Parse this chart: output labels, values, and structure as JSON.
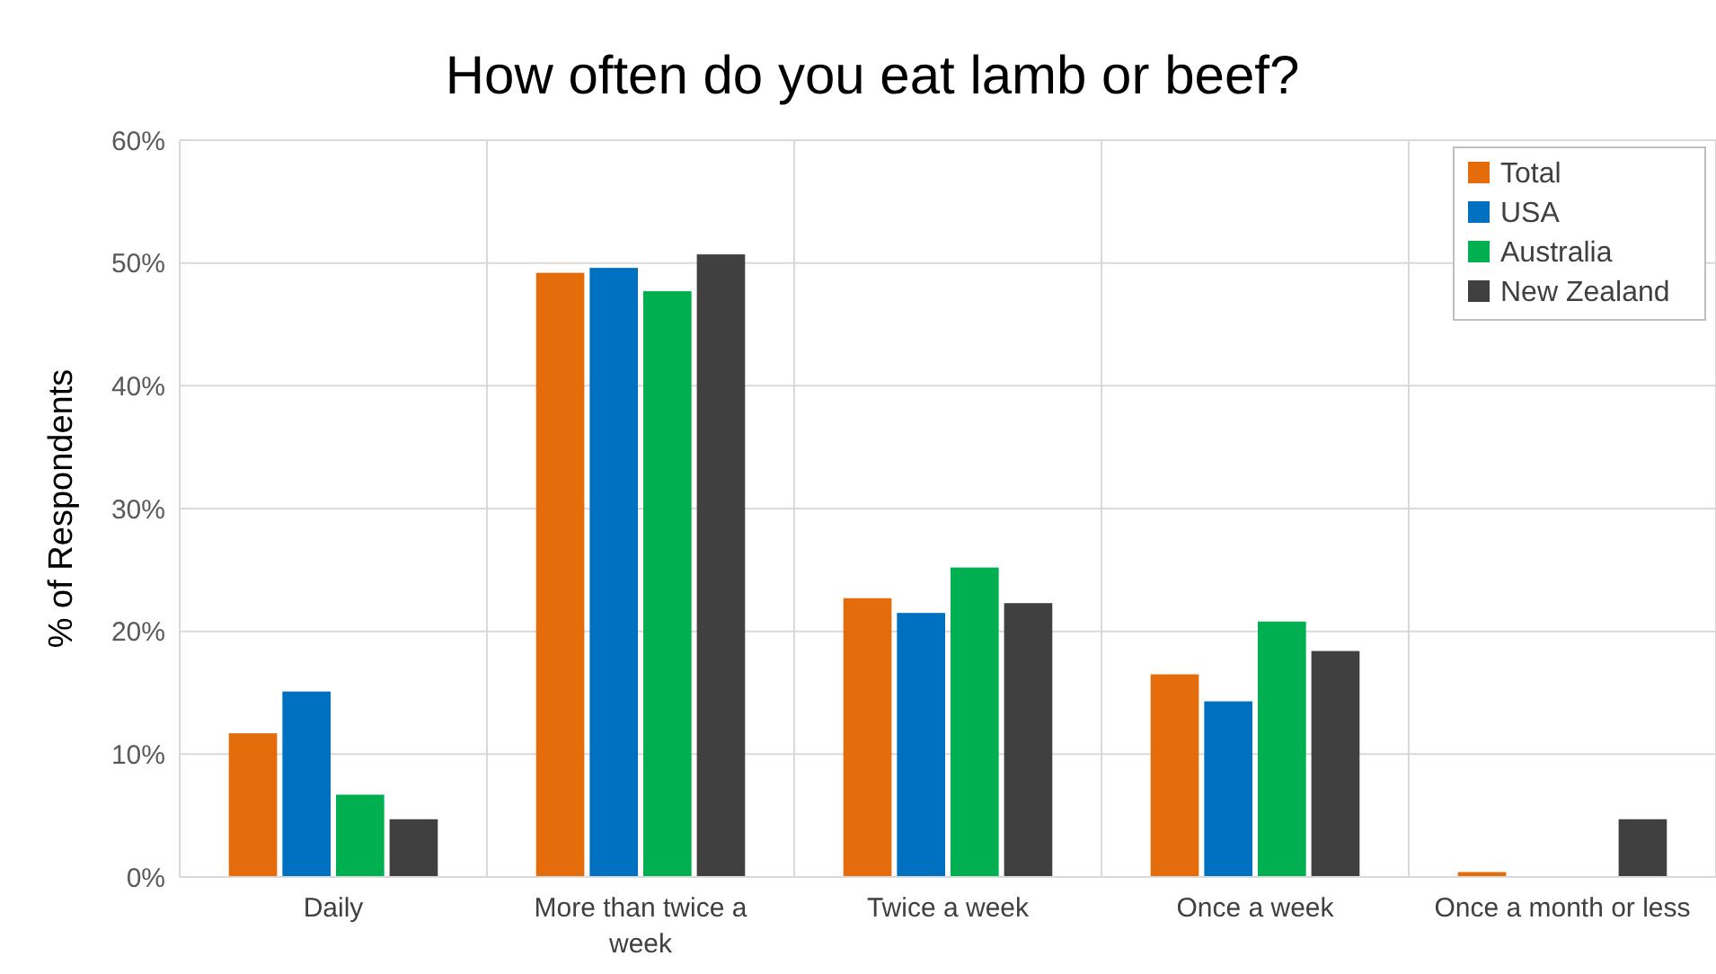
{
  "chart_data": {
    "type": "bar",
    "title": "How often do you eat lamb or beef?",
    "ylabel": "% of Respondents",
    "categories": [
      "Daily",
      "More than twice a week",
      "Twice a week",
      "Once a week",
      "Once a month or less"
    ],
    "series": [
      {
        "name": "Total",
        "color": "#e46c0a",
        "values": [
          11.7,
          49.2,
          22.7,
          16.5,
          0.4
        ]
      },
      {
        "name": "USA",
        "color": "#0070c0",
        "values": [
          15.1,
          49.6,
          21.5,
          14.3,
          0
        ]
      },
      {
        "name": "Australia",
        "color": "#00b050",
        "values": [
          6.7,
          47.7,
          25.2,
          20.8,
          0
        ]
      },
      {
        "name": "New Zealand",
        "color": "#404040",
        "values": [
          4.7,
          50.7,
          22.3,
          18.4,
          4.7
        ]
      }
    ],
    "ylim": [
      0,
      60
    ],
    "yticks": [
      {
        "value": 0,
        "label": "0%"
      },
      {
        "value": 10,
        "label": "10%"
      },
      {
        "value": 20,
        "label": "20%"
      },
      {
        "value": 30,
        "label": "30%"
      },
      {
        "value": 40,
        "label": "40%"
      },
      {
        "value": 50,
        "label": "50%"
      },
      {
        "value": 60,
        "label": "60%"
      }
    ],
    "grid": true,
    "legend": "top right"
  }
}
